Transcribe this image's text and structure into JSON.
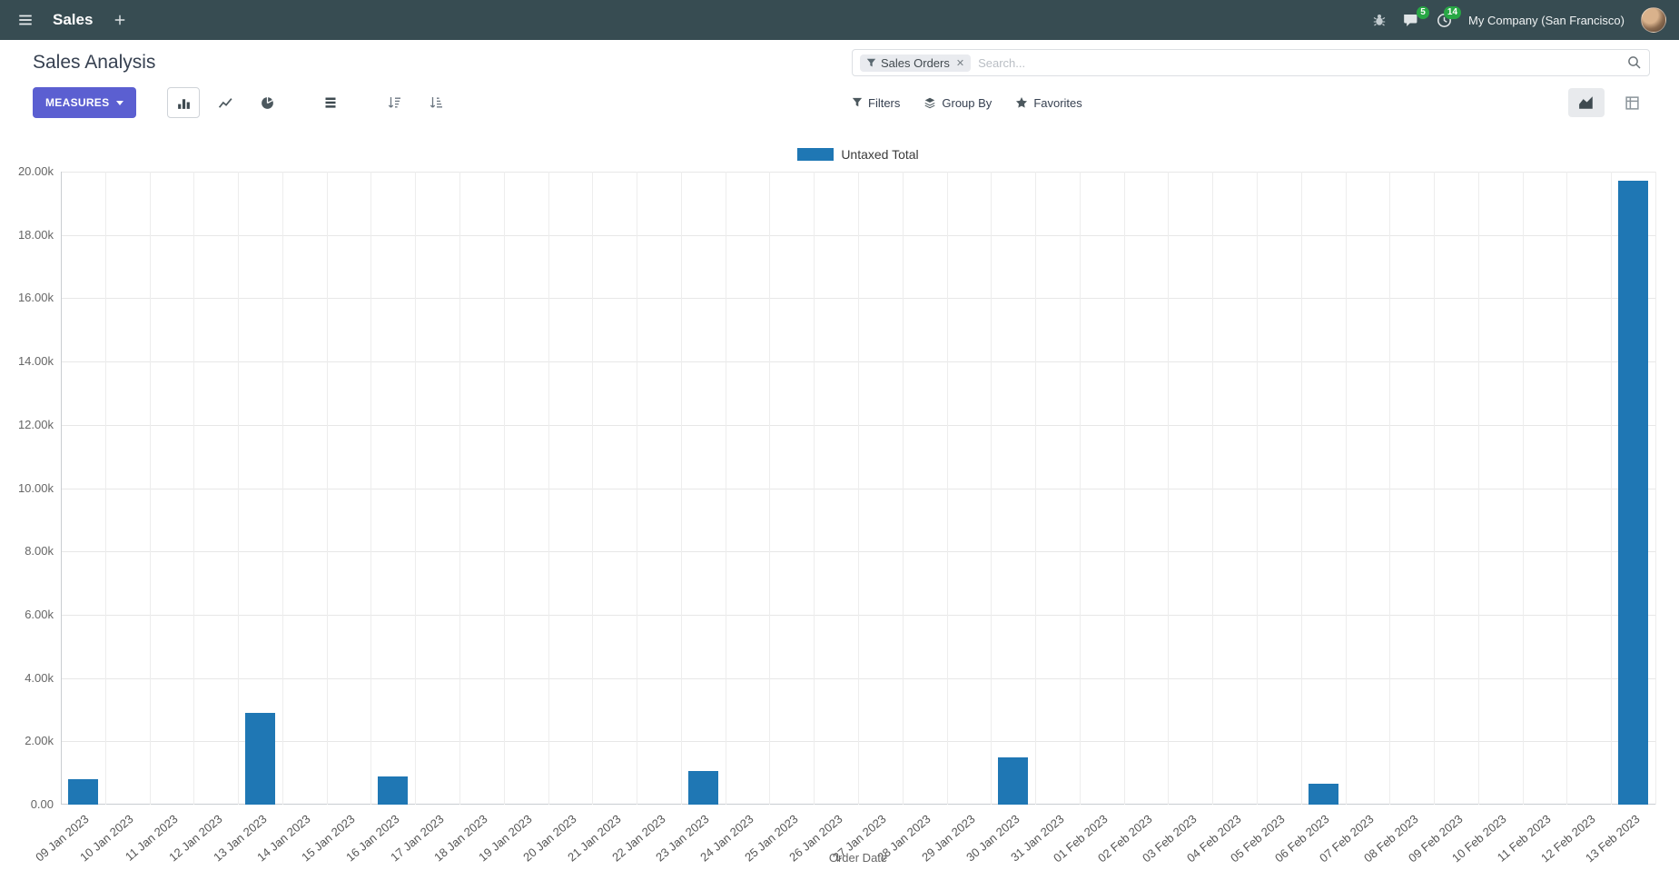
{
  "navbar": {
    "app_name": "Sales",
    "company": "My Company (San Francisco)",
    "chat_badge": "5",
    "activity_badge": "14"
  },
  "control_panel": {
    "title": "Sales Analysis",
    "measures_label": "MEASURES",
    "search": {
      "facet": "Sales Orders",
      "facet_remove": "✕",
      "placeholder": "Search..."
    },
    "filters_label": "Filters",
    "group_by_label": "Group By",
    "favorites_label": "Favorites"
  },
  "colors": {
    "navbar_bg": "#374c52",
    "primary": "#5b5fd1",
    "bar": "#1f77b4",
    "badge_green": "#28a745"
  },
  "chart_data": {
    "type": "bar",
    "title": "",
    "legend": [
      "Untaxed Total"
    ],
    "xlabel": "Order Date",
    "ylabel": "",
    "ylim": [
      0,
      20000
    ],
    "ytick_step": 2000,
    "ytick_labels": [
      "0.00",
      "2.00k",
      "4.00k",
      "6.00k",
      "8.00k",
      "10.00k",
      "12.00k",
      "14.00k",
      "16.00k",
      "18.00k",
      "20.00k"
    ],
    "grid": true,
    "legend_position": "top-center",
    "categories": [
      "09 Jan 2023",
      "10 Jan 2023",
      "11 Jan 2023",
      "12 Jan 2023",
      "13 Jan 2023",
      "14 Jan 2023",
      "15 Jan 2023",
      "16 Jan 2023",
      "17 Jan 2023",
      "18 Jan 2023",
      "19 Jan 2023",
      "20 Jan 2023",
      "21 Jan 2023",
      "22 Jan 2023",
      "23 Jan 2023",
      "24 Jan 2023",
      "25 Jan 2023",
      "26 Jan 2023",
      "27 Jan 2023",
      "28 Jan 2023",
      "29 Jan 2023",
      "30 Jan 2023",
      "31 Jan 2023",
      "01 Feb 2023",
      "02 Feb 2023",
      "03 Feb 2023",
      "04 Feb 2023",
      "05 Feb 2023",
      "06 Feb 2023",
      "07 Feb 2023",
      "08 Feb 2023",
      "09 Feb 2023",
      "10 Feb 2023",
      "11 Feb 2023",
      "12 Feb 2023",
      "13 Feb 2023"
    ],
    "series": [
      {
        "name": "Untaxed Total",
        "color": "#1f77b4",
        "values": [
          800,
          0,
          0,
          0,
          2900,
          0,
          0,
          900,
          0,
          0,
          0,
          0,
          0,
          0,
          1050,
          0,
          0,
          0,
          0,
          0,
          0,
          1500,
          0,
          0,
          0,
          0,
          0,
          0,
          650,
          0,
          0,
          0,
          0,
          0,
          0,
          19700
        ]
      }
    ]
  }
}
